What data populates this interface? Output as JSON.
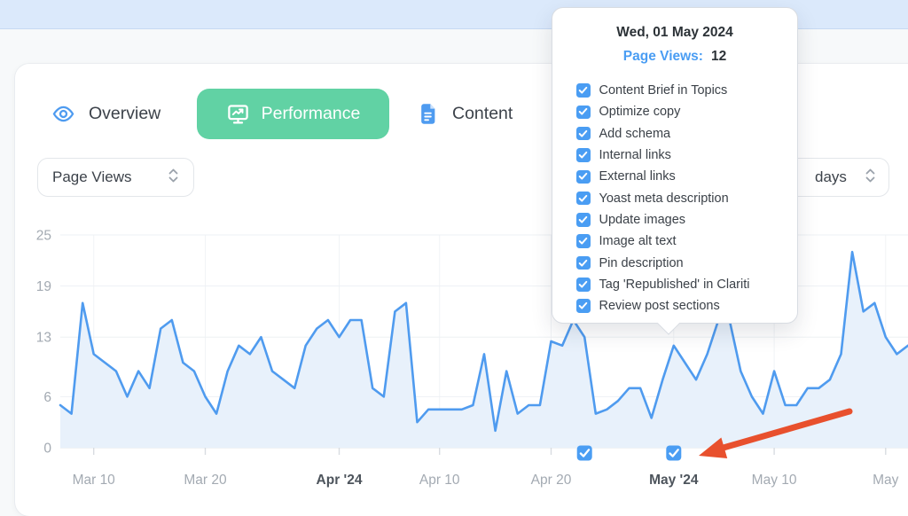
{
  "tabs": {
    "overview": {
      "label": "Overview"
    },
    "performance": {
      "label": "Performance",
      "active": true
    },
    "content": {
      "label": "Content"
    }
  },
  "filters": {
    "metric": {
      "value": "Page Views"
    },
    "range": {
      "visible_text": "days"
    }
  },
  "tooltip": {
    "date": "Wed, 01 May 2024",
    "metric_label": "Page Views:",
    "metric_value": "12",
    "checklist": [
      "Content Brief in Topics",
      "Optimize copy",
      "Add schema",
      "Internal links",
      "External links",
      "Yoast meta description",
      "Update images",
      "Image alt text",
      "Pin description",
      "Tag 'Republished' in Clariti",
      "Review post sections"
    ]
  },
  "colors": {
    "top_band": "#dbe9fb",
    "page_bg": "#f7f9fa",
    "accent_green": "#61d2a4",
    "accent_blue": "#4e9bf0",
    "line_blue": "#4f9bef",
    "area_fill": "#e8f1fb",
    "checkbox_blue": "#4a9df3",
    "arrow_red": "#e8502d",
    "text_dark": "#3c424a",
    "axis_gray": "#a3aab2",
    "axis_bold": "#4d545c",
    "grid": "#eef1f4",
    "tooltip_border": "#d8dce2"
  },
  "chart_data": {
    "type": "area",
    "title": "",
    "xlabel": "",
    "ylabel": "Page Views",
    "grid": "on",
    "legend": "off",
    "ylim": [
      0,
      25
    ],
    "y_ticks": [
      25,
      19,
      13,
      6,
      0
    ],
    "x_start_date": "2024-03-07",
    "x_unit": "day",
    "values": [
      5,
      4,
      17,
      11,
      10,
      9,
      6,
      9,
      7,
      14,
      15,
      10,
      9,
      6,
      4,
      9,
      12,
      11,
      13,
      9,
      8,
      7,
      12,
      14,
      15,
      13,
      15,
      15,
      7,
      6,
      16,
      17,
      3,
      4.5,
      4.5,
      4.5,
      4.5,
      5,
      11,
      2,
      9,
      4,
      5,
      5,
      12.5,
      12,
      15,
      13,
      4,
      4.5,
      5.5,
      7,
      7,
      3.5,
      8,
      12,
      10,
      8,
      11,
      15,
      15,
      9,
      6,
      4,
      9,
      5,
      5,
      7,
      7,
      8,
      11,
      23,
      16,
      17,
      13,
      11,
      12
    ],
    "x_ticks": [
      {
        "label": "Mar 10",
        "index": 3,
        "bold": false
      },
      {
        "label": "Mar 20",
        "index": 13,
        "bold": false
      },
      {
        "label": "Apr '24",
        "index": 25,
        "bold": true
      },
      {
        "label": "Apr 10",
        "index": 34,
        "bold": false
      },
      {
        "label": "Apr 20",
        "index": 44,
        "bold": false
      },
      {
        "label": "May '24",
        "index": 55,
        "bold": true
      },
      {
        "label": "May 10",
        "index": 64,
        "bold": false
      },
      {
        "label": "May",
        "index": 74,
        "bold": false
      }
    ],
    "markers": [
      {
        "index": 47,
        "type": "republish-checkbox",
        "checked": true
      },
      {
        "index": 55,
        "type": "republish-checkbox",
        "checked": true
      }
    ],
    "annotations": [
      {
        "type": "arrow",
        "color": "#e8502d",
        "target_index": 55,
        "target": "May '24 republish checkbox"
      }
    ],
    "highlighted_point": {
      "date": "Wed, 01 May 2024",
      "value": 12
    }
  }
}
